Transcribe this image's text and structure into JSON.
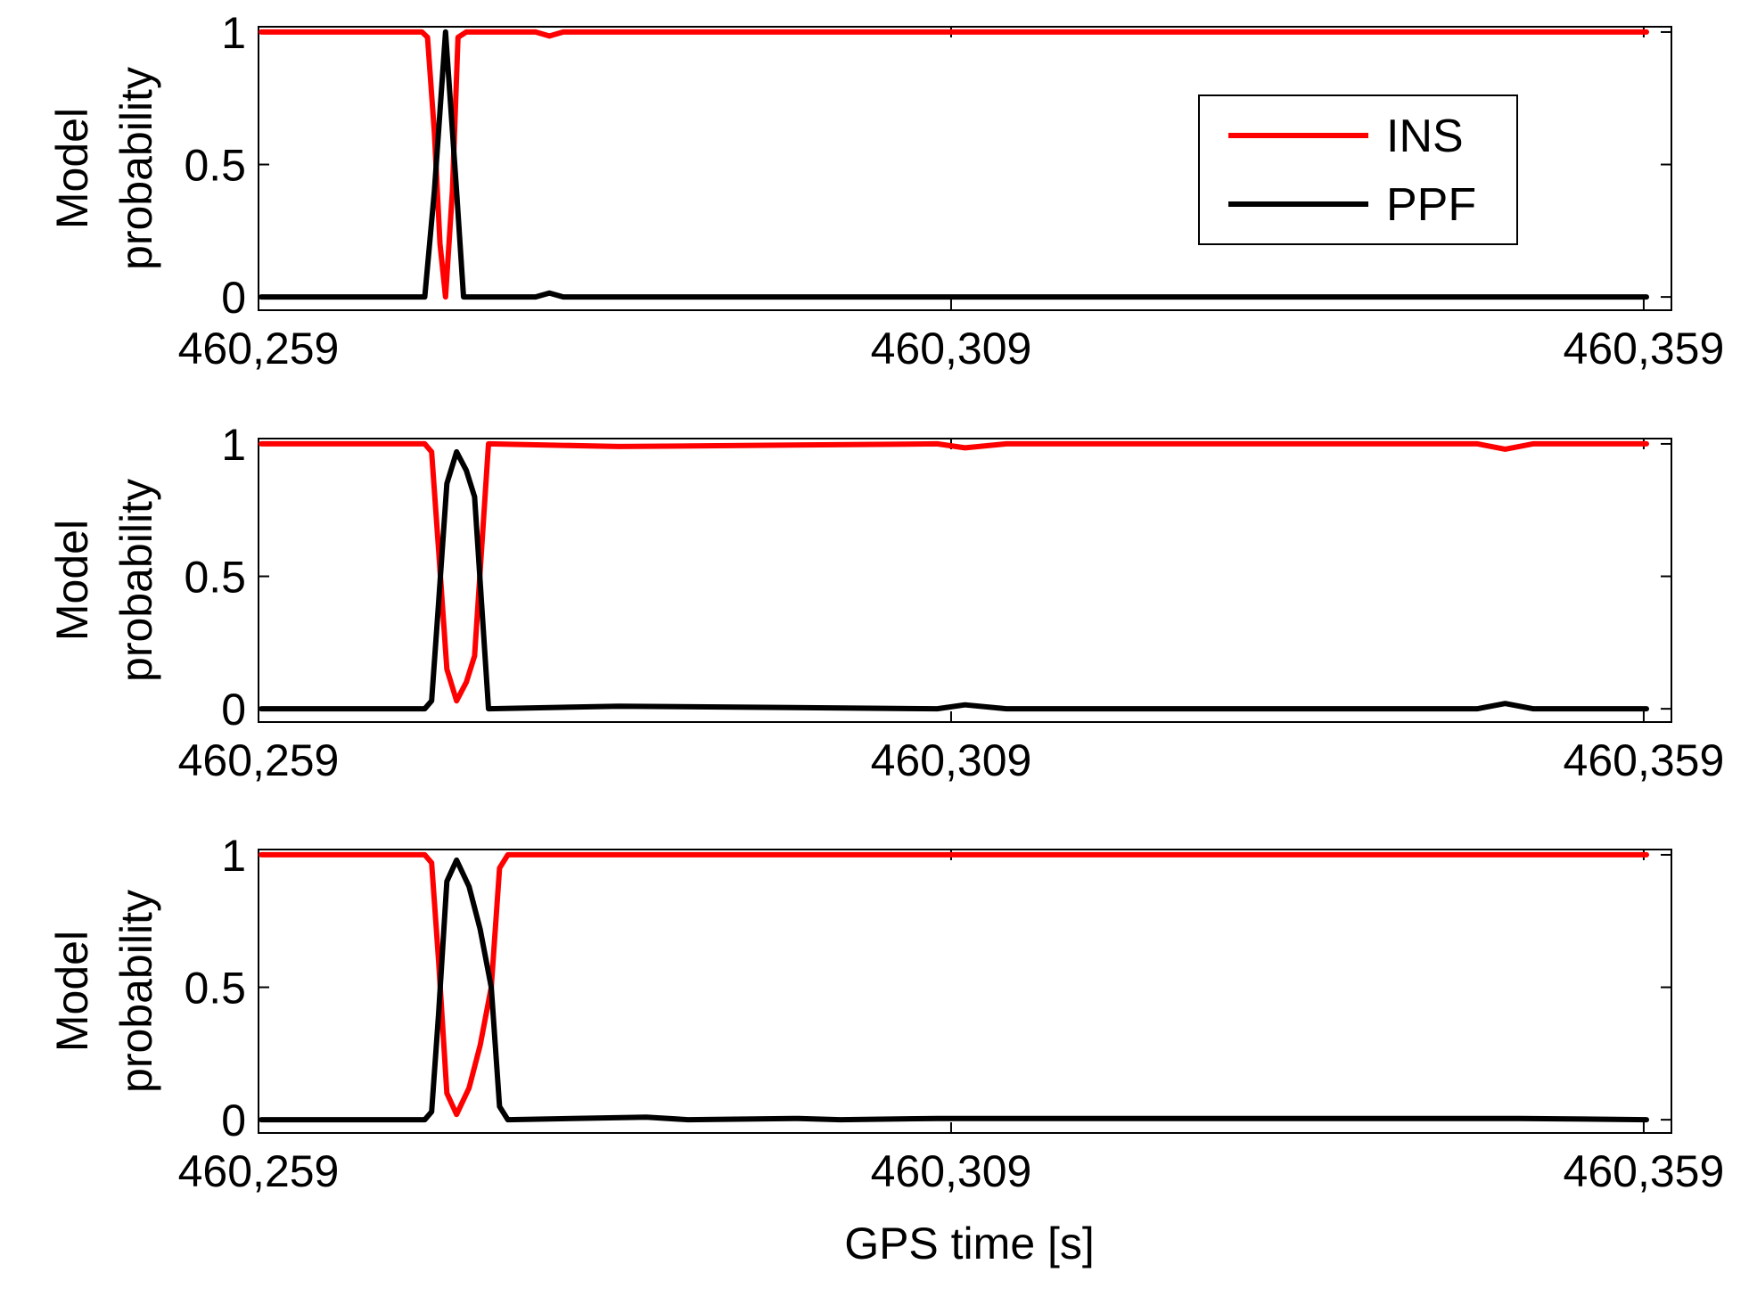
{
  "colors": {
    "INS": "#ff0000",
    "PPF": "#000000",
    "axes": "#000000",
    "background": "#ffffff"
  },
  "legend": {
    "placement": "top-right",
    "entries": [
      {
        "label": "INS",
        "color": "#ff0000"
      },
      {
        "label": "PPF",
        "color": "#000000"
      }
    ]
  },
  "chart_data": [
    {
      "type": "line",
      "xlabel": "",
      "ylabel_lines": [
        "Model",
        "probability"
      ],
      "xlim": [
        460259,
        460361
      ],
      "ylim": [
        -0.05,
        1.02
      ],
      "xticks": [
        460259,
        460309,
        460359
      ],
      "xtick_labels": [
        "460,259",
        "460,309",
        "460,359"
      ],
      "yticks": [
        0,
        0.5,
        1
      ],
      "ytick_labels": [
        "0",
        "0.5",
        "1"
      ],
      "grid": false,
      "series": [
        {
          "name": "INS",
          "color": "#ff0000",
          "x": [
            460259.2,
            460270.8,
            460271.2,
            460271.7,
            460272.1,
            460272.5,
            460273.0,
            460273.4,
            460274.0,
            460275.0,
            460279.0,
            460280.0,
            460281.0,
            460290.0,
            460359.2
          ],
          "y": [
            1,
            1,
            0.98,
            0.62,
            0.2,
            0,
            0.4,
            0.98,
            1,
            1,
            1,
            0.985,
            1,
            1,
            1
          ]
        },
        {
          "name": "PPF",
          "color": "#000000",
          "x": [
            460259.2,
            460271.0,
            460271.7,
            460272.5,
            460273.3,
            460273.8,
            460274.5,
            460279.0,
            460280.0,
            460281.0,
            460290.0,
            460359.2
          ],
          "y": [
            0,
            0,
            0.4,
            1,
            0.4,
            0,
            0,
            0,
            0.015,
            0,
            0,
            0
          ]
        }
      ]
    },
    {
      "type": "line",
      "xlabel": "",
      "ylabel_lines": [
        "Model",
        "probability"
      ],
      "xlim": [
        460259,
        460361
      ],
      "ylim": [
        -0.05,
        1.02
      ],
      "xticks": [
        460259,
        460309,
        460359
      ],
      "xtick_labels": [
        "460,259",
        "460,309",
        "460,359"
      ],
      "yticks": [
        0,
        0.5,
        1
      ],
      "ytick_labels": [
        "0",
        "0.5",
        "1"
      ],
      "grid": false,
      "series": [
        {
          "name": "INS",
          "color": "#ff0000",
          "x": [
            460259.2,
            460271.0,
            460271.5,
            460272.0,
            460272.6,
            460273.3,
            460274.0,
            460274.6,
            460275.1,
            460275.6,
            460285.0,
            460308.0,
            460310.0,
            460313.0,
            460347.0,
            460349.0,
            460351.0,
            460359.2
          ],
          "y": [
            1,
            1,
            0.97,
            0.6,
            0.15,
            0.03,
            0.1,
            0.2,
            0.6,
            1,
            0.99,
            1,
            0.985,
            1,
            1,
            0.98,
            1,
            1
          ]
        },
        {
          "name": "PPF",
          "color": "#000000",
          "x": [
            460259.2,
            460271.0,
            460271.5,
            460272.0,
            460272.6,
            460273.3,
            460274.0,
            460274.6,
            460275.1,
            460275.6,
            460285.0,
            460308.0,
            460310.0,
            460313.0,
            460347.0,
            460349.0,
            460351.0,
            460359.2
          ],
          "y": [
            0,
            0,
            0.03,
            0.4,
            0.85,
            0.97,
            0.9,
            0.8,
            0.4,
            0,
            0.01,
            0,
            0.015,
            0,
            0,
            0.02,
            0,
            0
          ]
        }
      ]
    },
    {
      "type": "line",
      "xlabel": "GPS time [s]",
      "ylabel_lines": [
        "Model",
        "probability"
      ],
      "xlim": [
        460259,
        460361
      ],
      "ylim": [
        -0.05,
        1.02
      ],
      "xticks": [
        460259,
        460309,
        460359
      ],
      "xtick_labels": [
        "460,259",
        "460,309",
        "460,359"
      ],
      "yticks": [
        0,
        0.5,
        1
      ],
      "ytick_labels": [
        "0",
        "0.5",
        "1"
      ],
      "grid": false,
      "series": [
        {
          "name": "INS",
          "color": "#ff0000",
          "x": [
            460259.2,
            460271.0,
            460271.5,
            460272.0,
            460272.6,
            460273.3,
            460274.2,
            460275.0,
            460275.8,
            460276.4,
            460277.0,
            460285.0,
            460301.0,
            460320.0,
            460359.2
          ],
          "y": [
            1,
            1,
            0.97,
            0.6,
            0.1,
            0.02,
            0.12,
            0.28,
            0.5,
            0.95,
            1,
            1,
            1,
            1,
            1
          ]
        },
        {
          "name": "PPF",
          "color": "#000000",
          "x": [
            460259.2,
            460271.0,
            460271.5,
            460272.0,
            460272.6,
            460273.3,
            460274.2,
            460275.0,
            460275.8,
            460276.4,
            460277.0,
            460287.0,
            460290.0,
            460298.0,
            460301.0,
            460308.0,
            460350.0,
            460359.2
          ],
          "y": [
            0,
            0,
            0.03,
            0.4,
            0.9,
            0.98,
            0.88,
            0.72,
            0.5,
            0.05,
            0,
            0.01,
            0,
            0.005,
            0,
            0.005,
            0.005,
            0
          ]
        }
      ]
    }
  ]
}
